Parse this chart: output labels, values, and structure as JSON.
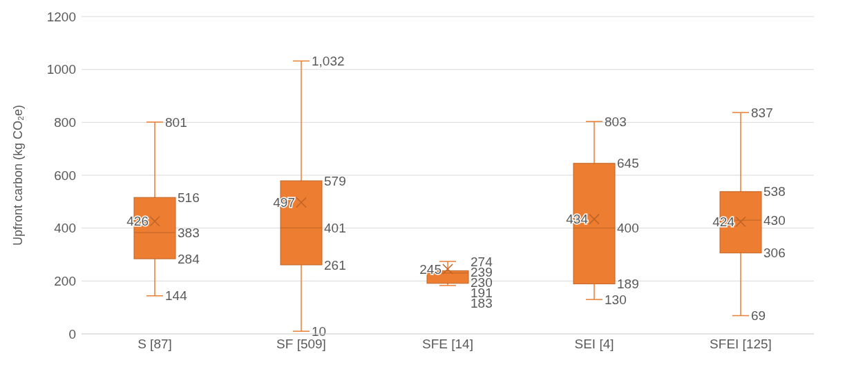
{
  "chart_data": {
    "type": "box",
    "ylabel": "Upfront carbon (kg CO₂e)",
    "categories": [
      "S [87]",
      "SF [509]",
      "SFE [14]",
      "SEI [4]",
      "SFEI [125]"
    ],
    "color": "#ed7d31",
    "boxes": [
      {
        "low": 144,
        "q1": 284,
        "median": 383,
        "q3": 516,
        "high": 801,
        "mean": 426
      },
      {
        "low": 10,
        "q1": 261,
        "median": 401,
        "q3": 579,
        "high": 1032,
        "mean": 497
      },
      {
        "low": 183,
        "q1": 191,
        "median": 230,
        "q3": 239,
        "high": 274,
        "mean": 245
      },
      {
        "low": 130,
        "q1": 189,
        "median": 400,
        "q3": 645,
        "high": 803,
        "mean": 434
      },
      {
        "low": 69,
        "q1": 306,
        "median": 430,
        "q3": 538,
        "high": 837,
        "mean": 424
      }
    ],
    "annotations": [
      {
        "text": "801",
        "x": "S [87]",
        "y": 801
      },
      {
        "text": "516",
        "x": "S [87]",
        "y": 516
      },
      {
        "text": "426",
        "x": "S [87]",
        "y": 426
      },
      {
        "text": "383",
        "x": "S [87]",
        "y": 383
      },
      {
        "text": "284",
        "x": "S [87]",
        "y": 284
      },
      {
        "text": "144",
        "x": "S [87]",
        "y": 144
      },
      {
        "text": "1,032",
        "x": "SF [509]",
        "y": 1032
      },
      {
        "text": "579",
        "x": "SF [509]",
        "y": 579
      },
      {
        "text": "497",
        "x": "SF [509]",
        "y": 497
      },
      {
        "text": "401",
        "x": "SF [509]",
        "y": 401
      },
      {
        "text": "261",
        "x": "SF [509]",
        "y": 261
      },
      {
        "text": "10",
        "x": "SF [509]",
        "y": 10
      },
      {
        "text": "274",
        "x": "SFE [14]",
        "y": 274
      },
      {
        "text": "245",
        "x": "SFE [14]",
        "y": 245
      },
      {
        "text": "239",
        "x": "SFE [14]",
        "y": 239
      },
      {
        "text": "230",
        "x": "SFE [14]",
        "y": 230
      },
      {
        "text": "191",
        "x": "SFE [14]",
        "y": 191
      },
      {
        "text": "183",
        "x": "SFE [14]",
        "y": 183
      },
      {
        "text": "803",
        "x": "SEI [4]",
        "y": 803
      },
      {
        "text": "645",
        "x": "SEI [4]",
        "y": 645
      },
      {
        "text": "434",
        "x": "SEI [4]",
        "y": 434
      },
      {
        "text": "400",
        "x": "SEI [4]",
        "y": 400
      },
      {
        "text": "189",
        "x": "SEI [4]",
        "y": 189
      },
      {
        "text": "130",
        "x": "SEI [4]",
        "y": 130
      },
      {
        "text": "837",
        "x": "SFEI [125]",
        "y": 837
      },
      {
        "text": "538",
        "x": "SFEI [125]",
        "y": 538
      },
      {
        "text": "430",
        "x": "SFEI [125]",
        "y": 430
      },
      {
        "text": "424",
        "x": "SFEI [125]",
        "y": 424
      },
      {
        "text": "306",
        "x": "SFEI [125]",
        "y": 306
      },
      {
        "text": "69",
        "x": "SFEI [125]",
        "y": 69
      }
    ],
    "ylim": [
      0,
      1200
    ],
    "yticks": [
      0,
      200,
      400,
      600,
      800,
      1000,
      1200
    ],
    "grid": "y"
  }
}
